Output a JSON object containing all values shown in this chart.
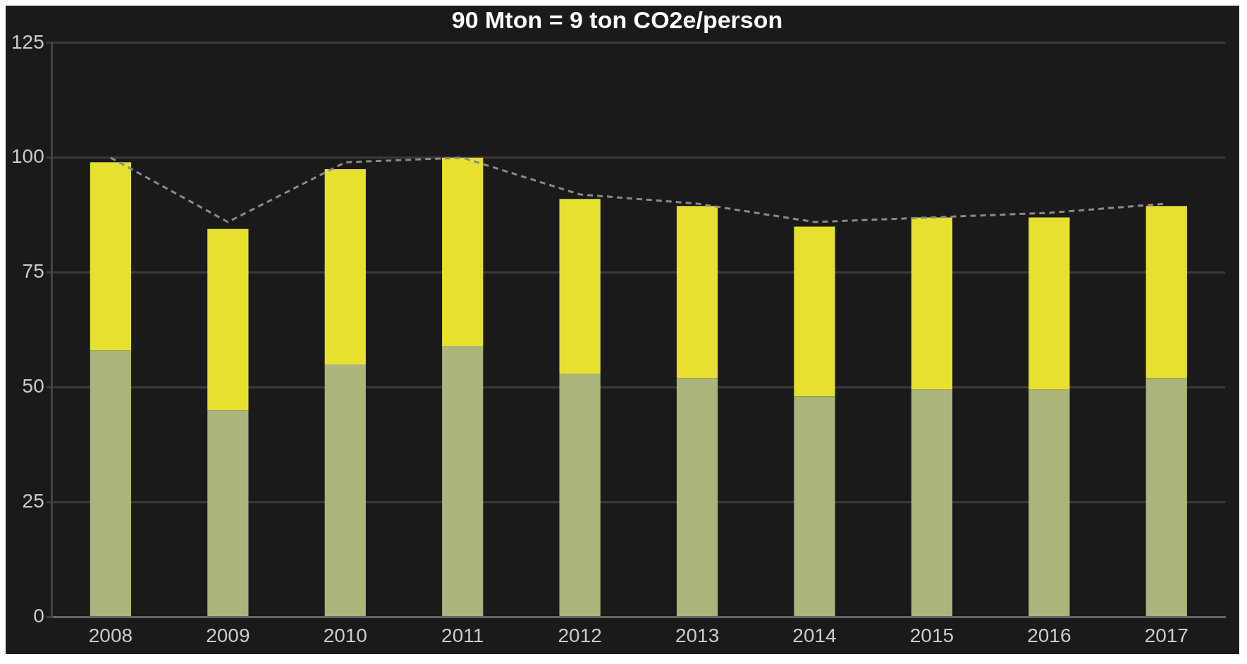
{
  "chart_data": {
    "type": "bar",
    "title": "90 Mton = 9 ton CO2e/person",
    "categories": [
      "2008",
      "2009",
      "2010",
      "2011",
      "2012",
      "2013",
      "2014",
      "2015",
      "2016",
      "2017"
    ],
    "stacked": true,
    "series": [
      {
        "color": "#a9b57a",
        "values": [
          58,
          45,
          55,
          59,
          53,
          52,
          48,
          49.5,
          49.5,
          52
        ]
      },
      {
        "color": "#e8e030",
        "values": [
          41,
          39.5,
          42.5,
          41,
          38,
          37.5,
          37,
          37.5,
          37.5,
          37.5
        ]
      },
      {
        "type": "line",
        "color": "#8a8a8a",
        "line_style": "dashed",
        "values": [
          100,
          86,
          99,
          100,
          92,
          90,
          86,
          87,
          88,
          90
        ]
      }
    ],
    "ylim": [
      0,
      125
    ],
    "yticks": [
      0,
      25,
      50,
      75,
      100,
      125
    ],
    "grid": "y",
    "legend": false
  }
}
